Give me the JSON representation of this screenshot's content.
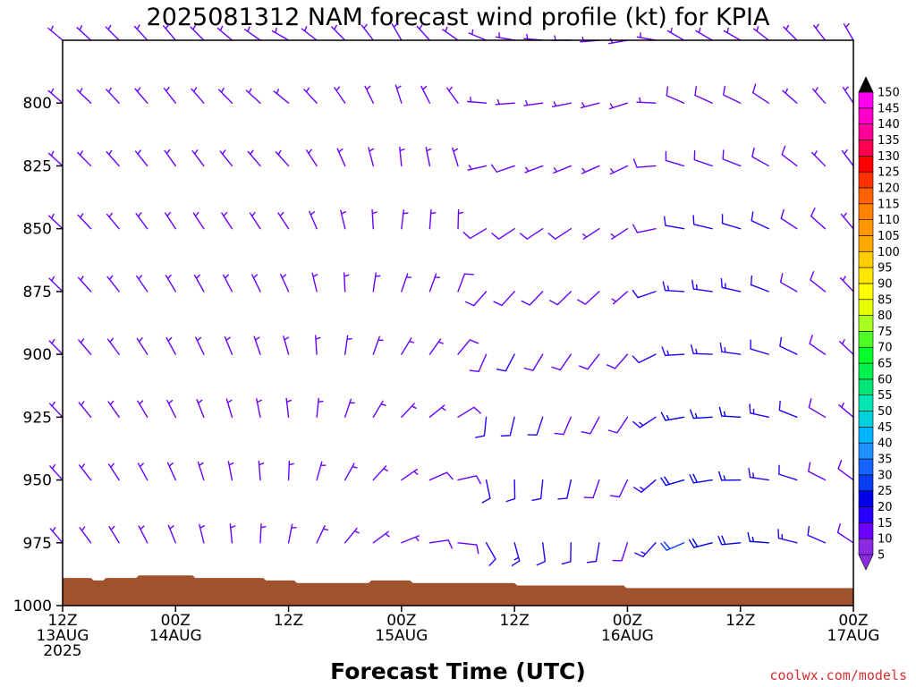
{
  "chart_data": {
    "type": "wind-barb profile",
    "title": "2025081312 NAM forecast wind profile (kt) for KPIA",
    "xlabel": "Forecast Time (UTC)",
    "ylabel": "",
    "credit": "coolwx.com/models",
    "x_ticks": [
      {
        "lines": [
          "12Z",
          "13AUG",
          "2025"
        ],
        "hours": 0
      },
      {
        "lines": [
          "00Z",
          "14AUG"
        ],
        "hours": 12
      },
      {
        "lines": [
          "12Z"
        ],
        "hours": 24
      },
      {
        "lines": [
          "00Z",
          "15AUG"
        ],
        "hours": 36
      },
      {
        "lines": [
          "12Z"
        ],
        "hours": 48
      },
      {
        "lines": [
          "00Z",
          "16AUG"
        ],
        "hours": 60
      },
      {
        "lines": [
          "12Z"
        ],
        "hours": 72
      },
      {
        "lines": [
          "00Z",
          "17AUG"
        ],
        "hours": 84
      }
    ],
    "x_range_hours": [
      0,
      84
    ],
    "y_axis": {
      "label": "",
      "ticks": [
        800,
        825,
        850,
        875,
        900,
        925,
        950,
        975,
        1000
      ],
      "range_hpa": [
        775,
        1000
      ]
    },
    "colorbar": {
      "unit": "kt",
      "levels": [
        5,
        10,
        15,
        20,
        25,
        30,
        35,
        40,
        45,
        50,
        55,
        60,
        65,
        70,
        75,
        80,
        85,
        90,
        95,
        100,
        105,
        110,
        115,
        120,
        125,
        130,
        135,
        140,
        145,
        150
      ],
      "colors": [
        "#8a2be2",
        "#6a00ff",
        "#2a00ff",
        "#0000e6",
        "#0a3cf0",
        "#1464ff",
        "#1e90ff",
        "#00b4ff",
        "#00d2dc",
        "#00e6b4",
        "#00e678",
        "#00f050",
        "#00ff2a",
        "#50ff28",
        "#aaff22",
        "#e8ff00",
        "#ffff00",
        "#ffe600",
        "#ffcc00",
        "#ffaa00",
        "#ff9600",
        "#ff8200",
        "#ff6400",
        "#ff3200",
        "#ff0000",
        "#ff0050",
        "#ff0096",
        "#ff00c8",
        "#ff00f0",
        "#000000"
      ]
    },
    "surface_pressure_hpa": [
      {
        "hour": 0,
        "p": 989
      },
      {
        "hour": 3,
        "p": 989
      },
      {
        "hour": 3.3,
        "p": 990
      },
      {
        "hour": 4.3,
        "p": 990
      },
      {
        "hour": 4.6,
        "p": 989
      },
      {
        "hour": 7.8,
        "p": 989
      },
      {
        "hour": 8.1,
        "p": 988
      },
      {
        "hour": 13.8,
        "p": 988
      },
      {
        "hour": 14.1,
        "p": 989
      },
      {
        "hour": 21.3,
        "p": 989
      },
      {
        "hour": 21.6,
        "p": 990
      },
      {
        "hour": 24.6,
        "p": 990
      },
      {
        "hour": 24.9,
        "p": 991
      },
      {
        "hour": 32.5,
        "p": 991
      },
      {
        "hour": 32.8,
        "p": 990
      },
      {
        "hour": 36.9,
        "p": 990
      },
      {
        "hour": 37.2,
        "p": 991
      },
      {
        "hour": 48,
        "p": 991
      },
      {
        "hour": 48.3,
        "p": 992
      },
      {
        "hour": 59.6,
        "p": 992
      },
      {
        "hour": 59.9,
        "p": 993
      },
      {
        "hour": 84,
        "p": 993
      }
    ],
    "pressure_levels_hpa": [
      1000,
      975,
      950,
      925,
      900,
      875,
      850,
      825,
      800,
      775
    ],
    "time_step_hours": 3,
    "wind_keyframes": [
      {
        "hour": 0,
        "dir_low": 320,
        "dir_high": 310,
        "spd_low": 7,
        "spd_high": 6
      },
      {
        "hour": 12,
        "dir_low": 340,
        "dir_high": 320,
        "spd_low": 5,
        "spd_high": 7
      },
      {
        "hour": 24,
        "dir_low": 20,
        "dir_high": 300,
        "spd_low": 6,
        "spd_high": 5
      },
      {
        "hour": 36,
        "dir_low": 80,
        "dir_high": 330,
        "spd_low": 6,
        "spd_high": 6
      },
      {
        "hour": 48,
        "dir_low": 150,
        "dir_high": 280,
        "spd_low": 14,
        "spd_high": 6
      },
      {
        "hour": 60,
        "dir_low": 190,
        "dir_high": 260,
        "spd_low": 10,
        "spd_high": 5
      },
      {
        "hour": 66,
        "dir_low": 240,
        "dir_high": 300,
        "spd_low": 22,
        "spd_high": 6
      },
      {
        "hour": 72,
        "dir_low": 260,
        "dir_high": 300,
        "spd_low": 20,
        "spd_high": 7
      },
      {
        "hour": 84,
        "dir_low": 300,
        "dir_high": 330,
        "spd_low": 8,
        "spd_high": 6
      }
    ]
  }
}
